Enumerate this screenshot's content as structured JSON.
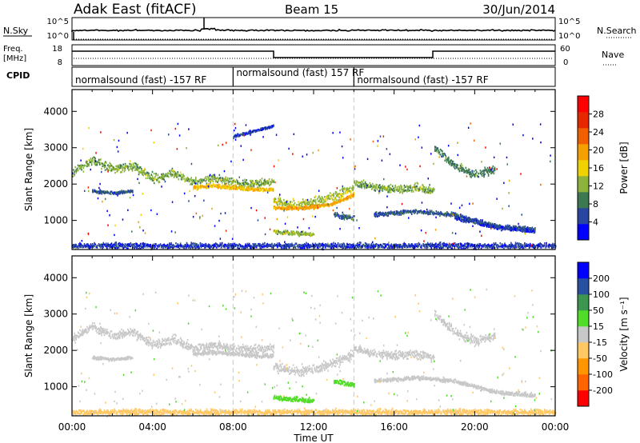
{
  "header": {
    "station": "Adak East (fitACF)",
    "beam": "Beam 15",
    "date": "30/Jun/2014"
  },
  "nsky_panel": {
    "left_label": "N.Sky",
    "left_ticks": [
      "10^5",
      "10^0"
    ],
    "right_ticks": [
      "10^5",
      "10^0"
    ],
    "right_label": "N.Search"
  },
  "freq_panel": {
    "left_label_1": "Freq.",
    "left_label_2": "[MHz]",
    "left_ticks": [
      "18",
      "8"
    ],
    "right_ticks": [
      "60",
      "0"
    ],
    "right_label": "Nave"
  },
  "cpid_panel": {
    "label": "CPID",
    "segments": [
      {
        "text": "normalsound (fast) -157 RF",
        "start": 0,
        "end": 8
      },
      {
        "text": "normalsound (fast) 157 RF",
        "start": 8,
        "end": 14
      },
      {
        "text": "normalsound (fast) -157 RF",
        "start": 14,
        "end": 24
      }
    ]
  },
  "colors": {
    "power": [
      "#0000ff",
      "#2846a0",
      "#3c7850",
      "#8cb43c",
      "#f0d200",
      "#f5a000",
      "#f06000",
      "#e62800",
      "#ff0000"
    ],
    "velocity": [
      "#ff0000",
      "#ff6400",
      "#ff9600",
      "#ffc864",
      "#c8c8c8",
      "#50dc28",
      "#3c9650",
      "#2850a0",
      "#0000ff"
    ]
  },
  "chart_data": [
    {
      "type": "heatmap",
      "name": "power",
      "x_unit": "hour UT",
      "xlim": [
        0,
        24
      ],
      "ylim": [
        200,
        4600
      ],
      "ylabel": "Slant Range [km]",
      "yticks": [
        1000,
        2000,
        3000,
        4000
      ],
      "colorbar_label": "Power [dB]",
      "colorbar_range": [
        0,
        32
      ],
      "colorbar_ticks": [
        4,
        8,
        12,
        16,
        20,
        24,
        28
      ],
      "bands": [
        {
          "x": [
            0,
            1,
            2,
            3,
            4,
            5,
            6,
            7,
            8,
            9,
            10
          ],
          "y": [
            2300,
            2650,
            2400,
            2500,
            2150,
            2300,
            2050,
            2150,
            2050,
            2000,
            2050
          ],
          "width": 200,
          "value": 13
        },
        {
          "x": [
            1,
            2,
            3
          ],
          "y": [
            1800,
            1750,
            1800
          ],
          "width": 70,
          "value": 7
        },
        {
          "x": [
            6,
            7,
            8,
            9,
            10
          ],
          "y": [
            1900,
            1950,
            1900,
            1850,
            1850
          ],
          "width": 90,
          "value": 20
        },
        {
          "x": [
            10,
            11,
            12,
            13,
            14
          ],
          "y": [
            1550,
            1400,
            1480,
            1650,
            1900
          ],
          "width": 220,
          "value": 15
        },
        {
          "x": [
            10,
            11,
            12,
            13,
            14
          ],
          "y": [
            1350,
            1330,
            1370,
            1460,
            1700
          ],
          "width": 80,
          "value": 22
        },
        {
          "x": [
            10,
            11,
            12
          ],
          "y": [
            700,
            650,
            600
          ],
          "width": 100,
          "value": 14
        },
        {
          "x": [
            13,
            14
          ],
          "y": [
            1150,
            1050
          ],
          "width": 120,
          "value": 8
        },
        {
          "x": [
            14,
            15,
            16,
            17,
            18
          ],
          "y": [
            2050,
            1900,
            1850,
            1900,
            1800
          ],
          "width": 180,
          "value": 13
        },
        {
          "x": [
            18,
            19,
            20,
            21
          ],
          "y": [
            3000,
            2500,
            2250,
            2400
          ],
          "width": 200,
          "value": 10
        },
        {
          "x": [
            15,
            17,
            19,
            21,
            23
          ],
          "y": [
            1150,
            1250,
            1150,
            850,
            750
          ],
          "width": 90,
          "value": 7
        },
        {
          "x": [
            19,
            20,
            21,
            22,
            23
          ],
          "y": [
            1050,
            950,
            800,
            750,
            700
          ],
          "width": 80,
          "value": 5
        },
        {
          "x": [
            8,
            9,
            10
          ],
          "y": [
            3300,
            3450,
            3600
          ],
          "width": 60,
          "value": 5
        },
        {
          "x": [
            0,
            6,
            12,
            18,
            24
          ],
          "y": [
            300,
            300,
            300,
            300,
            300
          ],
          "width": 120,
          "value": 5
        }
      ]
    },
    {
      "type": "heatmap",
      "name": "velocity",
      "x_unit": "hour UT",
      "xlim": [
        0,
        24
      ],
      "ylim": [
        200,
        4600
      ],
      "ylabel": "Slant Range [km]",
      "yticks": [
        1000,
        2000,
        3000,
        4000
      ],
      "xlabel": "Time UT",
      "xticks": [
        "00:00",
        "04:00",
        "08:00",
        "12:00",
        "16:00",
        "20:00",
        "00:00"
      ],
      "colorbar_label": "Velocity [m s⁻¹]",
      "colorbar_ticks": [
        200,
        100,
        50,
        15,
        -15,
        -50,
        -100,
        -200
      ],
      "bands": [
        {
          "x": [
            0,
            1,
            2,
            3,
            4,
            5,
            6,
            7,
            8,
            9,
            10
          ],
          "y": [
            2300,
            2650,
            2400,
            2500,
            2150,
            2300,
            2050,
            2150,
            2050,
            2000,
            2050
          ],
          "width": 200,
          "value": 0
        },
        {
          "x": [
            1,
            2,
            3
          ],
          "y": [
            1800,
            1750,
            1800
          ],
          "width": 70,
          "value": 0
        },
        {
          "x": [
            6,
            7,
            8,
            9,
            10
          ],
          "y": [
            1900,
            1950,
            1900,
            1850,
            1850
          ],
          "width": 90,
          "value": 0
        },
        {
          "x": [
            10,
            11,
            12,
            13,
            14
          ],
          "y": [
            1550,
            1400,
            1480,
            1650,
            1900
          ],
          "width": 220,
          "value": 0
        },
        {
          "x": [
            10,
            11,
            12
          ],
          "y": [
            700,
            650,
            600
          ],
          "width": 100,
          "value": 30
        },
        {
          "x": [
            13,
            14
          ],
          "y": [
            1150,
            1050
          ],
          "width": 120,
          "value": 30
        },
        {
          "x": [
            14,
            15,
            16,
            17,
            18
          ],
          "y": [
            2050,
            1900,
            1850,
            1900,
            1800
          ],
          "width": 180,
          "value": 0
        },
        {
          "x": [
            18,
            19,
            20,
            21
          ],
          "y": [
            3000,
            2500,
            2250,
            2400
          ],
          "width": 200,
          "value": 0
        },
        {
          "x": [
            15,
            17,
            19,
            21,
            23
          ],
          "y": [
            1150,
            1250,
            1150,
            850,
            750
          ],
          "width": 90,
          "value": 0
        },
        {
          "x": [
            0,
            6,
            12,
            18,
            24
          ],
          "y": [
            300,
            300,
            300,
            300,
            300
          ],
          "width": 120,
          "value": -30
        }
      ]
    }
  ]
}
